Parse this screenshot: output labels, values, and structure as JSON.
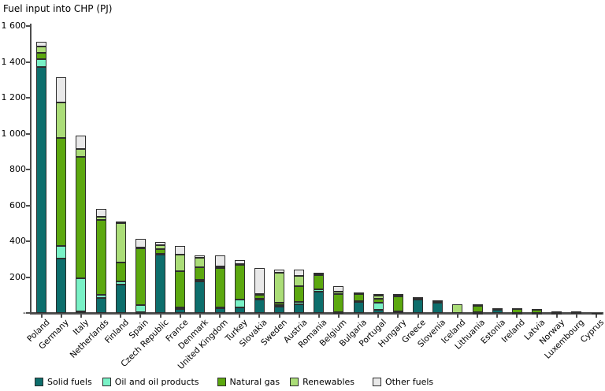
{
  "title": "Fuel input into CHP (PJ)",
  "colors": {
    "solid_fuels": "#0d6e6c",
    "oil_and_oil_products": "#79f1c6",
    "natural_gas": "#5ca80f",
    "renewables": "#abdd78",
    "other_fuels": "#e9e9e9",
    "outline": "#2e2e2e",
    "axis": "#4d4d4d",
    "background": "#ffffff"
  },
  "chart_data": {
    "type": "bar",
    "stacked": true,
    "title": "Fuel input into CHP (PJ)",
    "xlabel": "",
    "ylabel": "Fuel input into CHP (PJ)",
    "unit": "PJ",
    "ylim": [
      0,
      1600
    ],
    "ytick_values": [
      0,
      200,
      400,
      600,
      800,
      1000,
      1200,
      1400,
      1600
    ],
    "ytick_labels": [
      "-",
      "200",
      "400",
      "600",
      "800",
      "1 000",
      "1 200",
      "1 400",
      "1 600"
    ],
    "grid": false,
    "legend_position": "bottom",
    "categories": [
      "Poland",
      "Germany",
      "Italy",
      "Netherlands",
      "Finland",
      "Spain",
      "Czech Republic",
      "France",
      "Denmark",
      "United Kingdom",
      "Turkey",
      "Slovakia",
      "Sweden",
      "Austria",
      "Romania",
      "Belgium",
      "Bulgaria",
      "Portugal",
      "Hungary",
      "Greece",
      "Slovenia",
      "Iceland",
      "Lithuania",
      "Estonia",
      "Ireland",
      "Latvia",
      "Norway",
      "Luxembourg",
      "Cyprus"
    ],
    "series": [
      {
        "name": "Solid fuels",
        "color": "#0d6e6c",
        "values": [
          1370,
          305,
          10,
          85,
          160,
          5,
          325,
          20,
          175,
          25,
          30,
          75,
          35,
          50,
          118,
          3,
          64,
          16,
          8,
          78,
          62,
          0,
          2,
          23,
          0,
          1,
          2,
          0,
          0
        ]
      },
      {
        "name": "Oil and oil products",
        "color": "#79f1c6",
        "values": [
          45,
          70,
          185,
          15,
          15,
          40,
          5,
          10,
          8,
          5,
          45,
          3,
          10,
          10,
          15,
          2,
          2,
          41,
          1,
          1,
          1,
          0,
          1,
          1,
          1,
          0,
          1,
          0,
          1
        ]
      },
      {
        "name": "Natural gas",
        "color": "#5ca80f",
        "values": [
          35,
          600,
          675,
          420,
          105,
          315,
          25,
          205,
          70,
          220,
          195,
          22,
          10,
          90,
          80,
          100,
          45,
          21,
          83,
          3,
          5,
          0,
          38,
          2,
          24,
          18,
          3,
          6,
          1
        ]
      },
      {
        "name": "Renewables",
        "color": "#abdd78",
        "values": [
          35,
          200,
          45,
          15,
          220,
          5,
          25,
          90,
          55,
          8,
          3,
          5,
          170,
          58,
          2,
          15,
          1,
          19,
          3,
          0,
          1,
          48,
          5,
          0,
          0,
          2,
          1,
          1,
          0
        ]
      },
      {
        "name": "Other fuels",
        "color": "#e9e9e9",
        "values": [
          25,
          140,
          75,
          45,
          10,
          50,
          15,
          50,
          15,
          65,
          22,
          145,
          15,
          32,
          10,
          28,
          4,
          10,
          9,
          8,
          2,
          0,
          1,
          0,
          1,
          0,
          1,
          0,
          0
        ]
      }
    ]
  }
}
